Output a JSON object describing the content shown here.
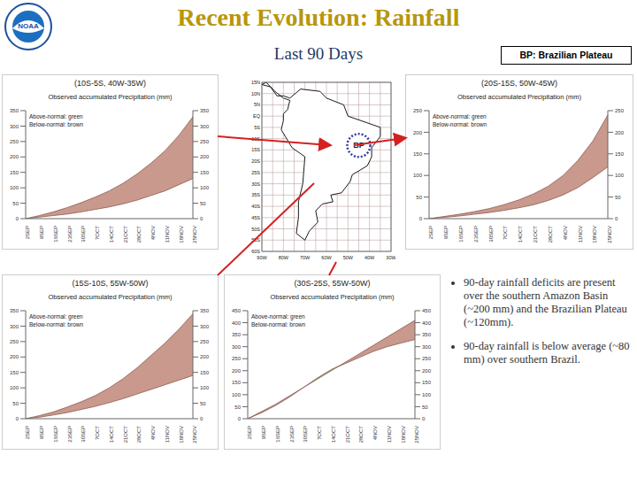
{
  "header": {
    "title": "Recent Evolution: Rainfall",
    "subtitle": "Last 90 Days",
    "legend_box": "BP: Brazilian Plateau",
    "logo_text": "NOAA"
  },
  "map": {
    "region_label": "BP",
    "lat_labels": [
      "15N",
      "10N",
      "5N",
      "EQ",
      "5S",
      "10S",
      "15S",
      "20S",
      "25S",
      "30S",
      "35S",
      "40S",
      "45S",
      "50S",
      "55S",
      "60S"
    ],
    "lon_labels": [
      "90W",
      "80W",
      "70W",
      "60W",
      "50W",
      "40W",
      "30W"
    ]
  },
  "chart_data": [
    {
      "type": "area",
      "title": "(10S-5S, 40W-35W)",
      "subtitle": "Observed accumulated Precipitation (mm)",
      "annotations": [
        "Above-normal: green",
        "Below-normal: brown"
      ],
      "categories": [
        "2SEP",
        "9SEP",
        "16SEP",
        "23SEP",
        "30SEP",
        "7OCT",
        "14OCT",
        "21OCT",
        "28OCT",
        "4NOV",
        "11NOV",
        "18NOV",
        "25NOV"
      ],
      "observed": [
        0,
        5,
        10,
        15,
        22,
        30,
        38,
        48,
        60,
        75,
        90,
        110,
        130
      ],
      "normal": [
        0,
        10,
        22,
        36,
        52,
        70,
        90,
        115,
        145,
        180,
        220,
        270,
        330
      ],
      "colors": [
        "#66cc66",
        "#c9998d"
      ],
      "ylim": [
        0,
        350
      ],
      "yticks": [
        0,
        50,
        100,
        150,
        200,
        250,
        300,
        350
      ]
    },
    {
      "type": "area",
      "title": "(20S-15S, 50W-45W)",
      "subtitle": "Observed accumulated Precipitation (mm)",
      "annotations": [
        "Above-normal: green",
        "Below-normal: brown"
      ],
      "categories": [
        "2SEP",
        "9SEP",
        "16SEP",
        "23SEP",
        "30SEP",
        "7OCT",
        "14OCT",
        "21OCT",
        "28OCT",
        "4NOV",
        "11NOV",
        "18NOV",
        "25NOV"
      ],
      "observed": [
        0,
        3,
        6,
        10,
        14,
        19,
        25,
        32,
        42,
        55,
        72,
        95,
        120
      ],
      "normal": [
        0,
        5,
        10,
        16,
        23,
        32,
        43,
        57,
        75,
        100,
        135,
        180,
        240
      ],
      "colors": [
        "#66cc66",
        "#c9998d"
      ],
      "ylim": [
        0,
        250
      ],
      "yticks": [
        0,
        50,
        100,
        150,
        200,
        250
      ]
    },
    {
      "type": "area",
      "title": "(15S-10S, 55W-50W)",
      "subtitle": "Observed accumulated Precipitation (mm)",
      "annotations": [
        "Above-normal: green",
        "Below-normal: brown"
      ],
      "categories": [
        "2SEP",
        "9SEP",
        "16SEP",
        "23SEP",
        "30SEP",
        "7OCT",
        "14OCT",
        "21OCT",
        "28OCT",
        "4NOV",
        "11NOV",
        "18NOV",
        "25NOV"
      ],
      "observed": [
        0,
        5,
        12,
        20,
        30,
        40,
        52,
        65,
        80,
        95,
        110,
        125,
        140
      ],
      "normal": [
        0,
        10,
        22,
        38,
        55,
        75,
        100,
        130,
        165,
        205,
        245,
        290,
        340
      ],
      "colors": [
        "#66cc66",
        "#c9998d"
      ],
      "ylim": [
        0,
        350
      ],
      "yticks": [
        0,
        50,
        100,
        150,
        200,
        250,
        300,
        350
      ]
    },
    {
      "type": "area",
      "title": "(30S-25S, 55W-50W)",
      "subtitle": "Observed accumulated Precipitation (mm)",
      "annotations": [
        "Above-normal: green",
        "Below-normal: brown"
      ],
      "categories": [
        "2SEP",
        "9SEP",
        "16SEP",
        "23SEP",
        "30SEP",
        "7OCT",
        "14OCT",
        "21OCT",
        "28OCT",
        "4NOV",
        "11NOV",
        "18NOV",
        "25NOV"
      ],
      "observed": [
        0,
        25,
        55,
        90,
        130,
        170,
        205,
        230,
        255,
        280,
        300,
        315,
        330
      ],
      "normal": [
        0,
        30,
        60,
        95,
        130,
        165,
        200,
        235,
        270,
        305,
        340,
        375,
        410
      ],
      "colors": [
        "#66cc66",
        "#c9998d"
      ],
      "ylim": [
        0,
        450
      ],
      "yticks": [
        0,
        50,
        100,
        150,
        200,
        250,
        300,
        350,
        400,
        450
      ]
    }
  ],
  "bullets": [
    "90-day rainfall deficits are present over the southern Amazon Basin (~200 mm) and the Brazilian Plateau (~120mm).",
    "90-day rainfall is below average (~80 mm) over southern Brazil."
  ]
}
